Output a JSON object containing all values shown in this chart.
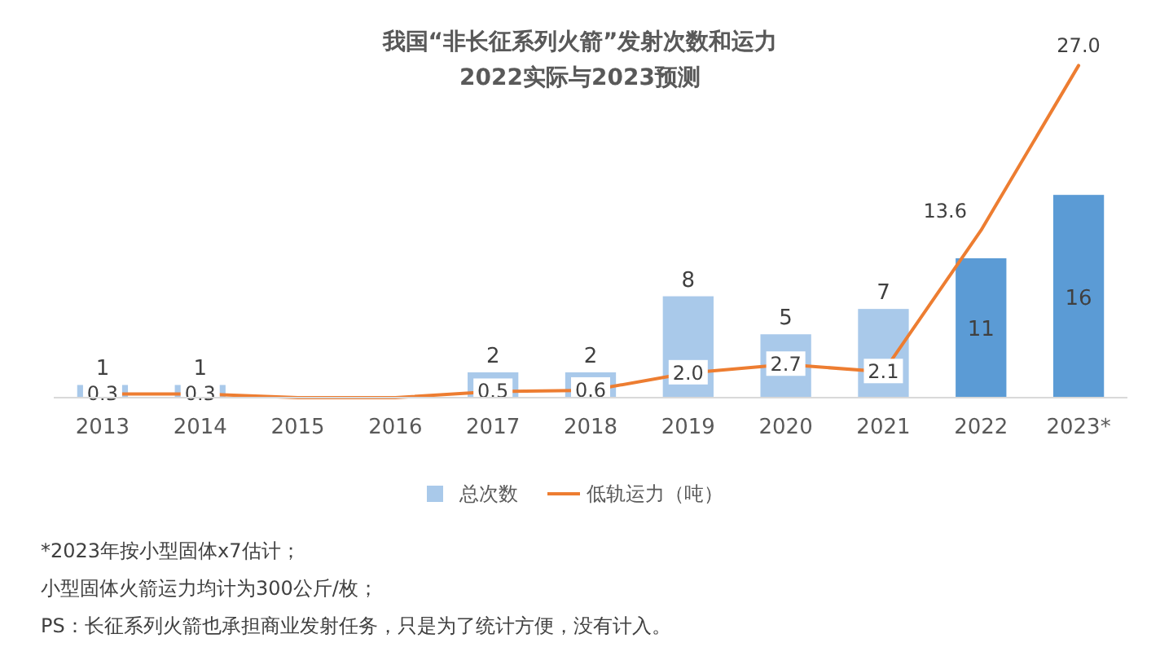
{
  "chart_data": {
    "type": "bar",
    "title": "我国“非长征系列火箭”发射次数和运力",
    "subtitle": "2022实际与2023预测",
    "categories": [
      "2013",
      "2014",
      "2015",
      "2016",
      "2017",
      "2018",
      "2019",
      "2020",
      "2021",
      "2022",
      "2023*"
    ],
    "series": [
      {
        "name": "总次数",
        "colors": [
          "#a9c9ea",
          "#a9c9ea",
          "#a9c9ea",
          "#a9c9ea",
          "#a9c9ea",
          "#a9c9ea",
          "#a9c9ea",
          "#a9c9ea",
          "#a9c9ea",
          "#5b9bd5",
          "#5b9bd5"
        ],
        "color": "#a9c9ea",
        "values": [
          1,
          1,
          0,
          0,
          2,
          2,
          8,
          5,
          7,
          11,
          16
        ],
        "value_labels": [
          "1",
          "1",
          null,
          null,
          "2",
          "2",
          "8",
          "5",
          "7",
          "11",
          "16"
        ]
      },
      {
        "name": "低轨运力（吨）",
        "type": "line",
        "axis": "y2",
        "color": "#ed7d31",
        "values": [
          0.3,
          0.3,
          0,
          0,
          0.5,
          0.6,
          2.0,
          2.7,
          2.1,
          13.6,
          27.0
        ],
        "value_labels": [
          "0.3",
          "0.3",
          null,
          null,
          "0.5",
          "0.6",
          "2.0",
          "2.7",
          "2.1",
          "13.6",
          "27.0"
        ]
      }
    ],
    "tick_labels": "x",
    "legend": "bottom",
    "line_style": "solid",
    "annotations": [
      "*2023年按小型固体x7估计；",
      "小型固体火箭运力均计为300公斤/枚；",
      "PS：长征系列火箭也承担商业发射任务，只是为了统计方便，没有计入。"
    ]
  }
}
